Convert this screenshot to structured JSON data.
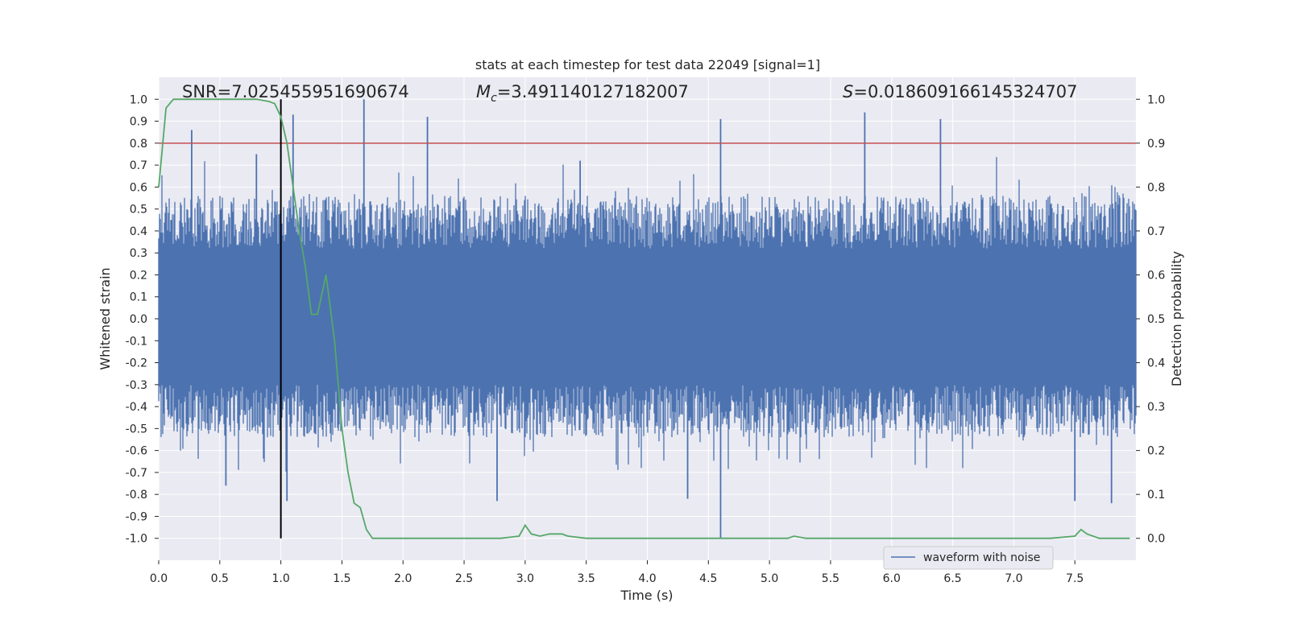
{
  "chart_data": {
    "type": "line",
    "title": "stats at each timestep for test data 22049 [signal=1]",
    "xlabel": "Time (s)",
    "ylabel_left": "Whitened strain",
    "ylabel_right": "Detection probability",
    "xlim": [
      0,
      8
    ],
    "ylim_left": [
      -1.1,
      1.1
    ],
    "ylim_right": [
      -0.05,
      1.05
    ],
    "x_ticks": [
      "0.0",
      "0.5",
      "1.0",
      "1.5",
      "2.0",
      "2.5",
      "3.0",
      "3.5",
      "4.0",
      "4.5",
      "5.0",
      "5.5",
      "6.0",
      "6.5",
      "7.0",
      "7.5"
    ],
    "y_ticks_left": [
      "1.0",
      "0.9",
      "0.8",
      "0.7",
      "0.6",
      "0.5",
      "0.4",
      "0.3",
      "0.2",
      "0.1",
      "0.0",
      "-0.1",
      "-0.2",
      "-0.3",
      "-0.4",
      "-0.5",
      "-0.6",
      "-0.7",
      "-0.8",
      "-0.9",
      "-1.0"
    ],
    "y_ticks_right": [
      "1.0",
      "0.9",
      "0.8",
      "0.7",
      "0.6",
      "0.5",
      "0.4",
      "0.3",
      "0.2",
      "0.1",
      "0.0"
    ],
    "grid": true,
    "legend": {
      "label": "waveform with noise",
      "placement": "lower-right"
    },
    "annotations": {
      "snr": "SNR=7.025455951690674",
      "mc_symbol": "M",
      "mc_subscript": "c",
      "mc_value": "=3.491140127182007",
      "s_symbol": "S",
      "s_value": "=0.018609166145324707"
    },
    "vertical_line": {
      "x": 1.0,
      "y_range": [
        -1.0,
        1.0
      ],
      "color": "#000000"
    },
    "threshold_line": {
      "axis": "right",
      "y": 0.9,
      "color": "#c44e52"
    },
    "series": [
      {
        "name": "waveform with noise",
        "axis": "left",
        "color": "#4c72b0",
        "style": "dense noise, amplitude roughly ±0.55 with spikes",
        "spikes": [
          {
            "x": 0.27,
            "y": 0.86
          },
          {
            "x": 1.1,
            "y": 0.93
          },
          {
            "x": 1.68,
            "y": 1.0
          },
          {
            "x": 2.2,
            "y": 0.92
          },
          {
            "x": 4.6,
            "y": 0.91
          },
          {
            "x": 5.78,
            "y": 0.94
          },
          {
            "x": 6.4,
            "y": 0.91
          },
          {
            "x": 0.8,
            "y": 0.75
          },
          {
            "x": 3.45,
            "y": 0.72
          },
          {
            "x": 0.55,
            "y": -0.76
          },
          {
            "x": 1.05,
            "y": -0.83
          },
          {
            "x": 2.77,
            "y": -0.83
          },
          {
            "x": 4.33,
            "y": -0.82
          },
          {
            "x": 4.6,
            "y": -1.0
          },
          {
            "x": 7.5,
            "y": -0.83
          },
          {
            "x": 7.8,
            "y": -0.84
          }
        ]
      },
      {
        "name": "detection probability",
        "axis": "right",
        "color": "#55a868",
        "x": [
          0.0,
          0.06,
          0.12,
          0.2,
          0.3,
          0.4,
          0.5,
          0.6,
          0.7,
          0.8,
          0.9,
          0.95,
          1.0,
          1.05,
          1.1,
          1.15,
          1.2,
          1.25,
          1.3,
          1.37,
          1.44,
          1.5,
          1.55,
          1.6,
          1.65,
          1.7,
          1.75,
          1.8,
          1.9,
          2.0,
          2.2,
          2.5,
          2.8,
          2.95,
          3.0,
          3.05,
          3.12,
          3.2,
          3.25,
          3.3,
          3.35,
          3.5,
          3.6,
          3.8,
          4.0,
          4.3,
          4.6,
          4.8,
          5.0,
          5.15,
          5.2,
          5.3,
          5.5,
          5.7,
          6.0,
          6.5,
          7.0,
          7.3,
          7.5,
          7.55,
          7.6,
          7.7,
          7.95
        ],
        "values": [
          0.8,
          0.98,
          1.0,
          1.0,
          1.0,
          1.0,
          1.0,
          1.0,
          1.0,
          1.0,
          0.995,
          0.99,
          0.96,
          0.9,
          0.8,
          0.7,
          0.62,
          0.51,
          0.51,
          0.6,
          0.45,
          0.25,
          0.15,
          0.08,
          0.07,
          0.02,
          0.0,
          0.0,
          0.0,
          0.0,
          0.0,
          0.0,
          0.0,
          0.005,
          0.03,
          0.01,
          0.005,
          0.01,
          0.01,
          0.01,
          0.005,
          0.0,
          0.0,
          0.0,
          0.0,
          0.0,
          0.0,
          0.0,
          0.0,
          0.0,
          0.005,
          0.0,
          0.0,
          0.0,
          0.0,
          0.0,
          0.0,
          0.0,
          0.005,
          0.02,
          0.01,
          0.0,
          0.0
        ]
      }
    ]
  }
}
